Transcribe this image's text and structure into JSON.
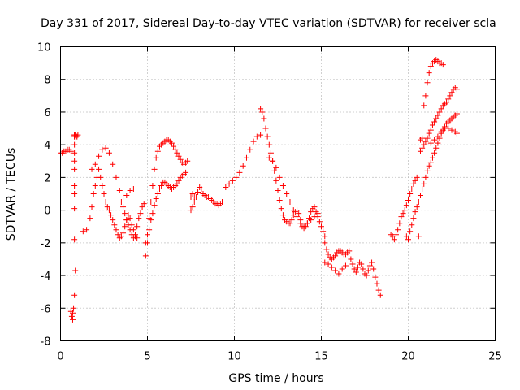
{
  "chart_data": {
    "type": "scatter",
    "title": "Day 331 of 2017, Sidereal Day-to-day VTEC variation (SDTVAR) for receiver scla",
    "xlabel": "GPS time / hours",
    "ylabel": "SDTVAR / TECUs",
    "xlim": [
      0,
      25
    ],
    "ylim": [
      -8,
      10
    ],
    "xticks": [
      0,
      5,
      10,
      15,
      20,
      25
    ],
    "yticks": [
      -8,
      -6,
      -4,
      -2,
      0,
      2,
      4,
      6,
      8,
      10
    ],
    "grid": true,
    "marker": "+",
    "color": "#ff0000",
    "series": [
      {
        "name": "SDTVAR",
        "x": [
          0.0,
          0.1,
          0.2,
          0.3,
          0.4,
          0.5,
          0.6,
          0.7,
          0.6,
          0.65,
          0.7,
          0.75,
          0.8,
          0.85,
          0.8,
          0.8,
          0.8,
          0.8,
          0.8,
          0.8,
          0.8,
          0.8,
          0.8,
          0.8,
          0.8,
          0.8,
          0.85,
          0.9,
          0.95,
          1.0,
          1.3,
          1.5,
          1.7,
          1.8,
          1.9,
          2.0,
          2.1,
          2.2,
          2.3,
          2.4,
          2.5,
          2.6,
          2.7,
          2.8,
          2.9,
          3.0,
          3.1,
          3.2,
          3.3,
          3.4,
          3.5,
          3.6,
          3.7,
          3.8,
          3.9,
          4.0,
          4.1,
          4.2,
          4.3,
          4.4,
          1.8,
          2.0,
          2.2,
          2.4,
          2.6,
          2.8,
          3.0,
          3.2,
          3.4,
          3.6,
          3.8,
          4.0,
          4.2,
          3.5,
          3.6,
          3.7,
          3.8,
          3.9,
          4.0,
          4.1,
          4.2,
          4.3,
          4.4,
          4.5,
          4.6,
          4.7,
          4.8,
          4.9,
          5.0,
          5.1,
          5.2,
          5.3,
          5.4,
          5.5,
          5.6,
          5.7,
          5.8,
          5.9,
          6.0,
          6.1,
          6.2,
          6.3,
          6.4,
          6.5,
          6.6,
          6.7,
          6.8,
          6.9,
          7.0,
          7.1,
          7.2,
          7.3,
          4.9,
          5.0,
          5.1,
          5.2,
          5.3,
          5.4,
          5.5,
          5.6,
          5.7,
          5.8,
          5.9,
          6.0,
          6.1,
          6.2,
          6.3,
          6.4,
          6.5,
          6.6,
          6.7,
          6.8,
          6.9,
          7.0,
          7.1,
          7.2,
          7.5,
          7.6,
          7.7,
          7.8,
          7.9,
          8.0,
          8.1,
          8.2,
          8.3,
          8.4,
          8.5,
          8.6,
          8.7,
          8.8,
          8.9,
          9.0,
          9.1,
          9.2,
          9.3,
          7.5,
          7.6,
          7.7,
          9.5,
          9.7,
          9.9,
          10.1,
          10.3,
          10.5,
          10.7,
          10.9,
          11.1,
          11.3,
          11.5,
          11.5,
          11.6,
          11.7,
          11.8,
          11.9,
          12.0,
          12.1,
          12.2,
          12.3,
          12.4,
          12.5,
          12.6,
          12.7,
          12.8,
          12.9,
          13.0,
          13.1,
          13.2,
          13.3,
          13.4,
          13.5,
          13.6,
          13.7,
          13.8,
          13.9,
          14.0,
          14.1,
          14.2,
          14.3,
          14.4,
          14.5,
          14.6,
          14.7,
          14.8,
          14.9,
          15.0,
          15.1,
          15.2,
          12.0,
          12.2,
          12.4,
          12.6,
          12.8,
          13.0,
          13.2,
          13.4,
          13.6,
          13.8,
          14.0,
          14.2,
          14.4,
          14.6,
          14.8,
          15.2,
          15.3,
          15.4,
          15.5,
          15.6,
          15.7,
          15.8,
          15.9,
          16.0,
          16.1,
          16.2,
          16.3,
          16.4,
          16.5,
          16.6,
          16.7,
          16.8,
          16.9,
          17.0,
          17.1,
          17.2,
          17.3,
          17.4,
          17.5,
          17.6,
          17.7,
          17.8,
          17.9,
          18.0,
          18.1,
          18.2,
          18.3,
          18.4,
          15.2,
          15.4,
          15.6,
          15.8,
          16.0,
          16.2,
          16.4,
          19.0,
          19.1,
          19.2,
          19.3,
          19.4,
          19.5,
          19.6,
          19.7,
          19.8,
          19.9,
          20.0,
          20.1,
          20.2,
          20.3,
          20.4,
          20.5,
          19.9,
          20.0,
          20.1,
          20.2,
          20.3,
          20.4,
          20.5,
          20.6,
          20.7,
          20.8,
          20.9,
          21.0,
          21.1,
          21.2,
          21.3,
          21.4,
          21.5,
          21.6,
          21.7,
          21.8,
          21.9,
          22.0,
          22.1,
          22.2,
          22.3,
          22.4,
          22.5,
          22.6,
          22.7,
          22.8,
          20.7,
          20.8,
          20.9,
          21.0,
          21.1,
          21.2,
          21.3,
          21.4,
          21.5,
          21.6,
          21.7,
          21.8,
          21.9,
          22.0,
          22.1,
          22.2,
          22.3,
          22.4,
          22.5,
          22.6,
          22.7,
          22.8,
          20.9,
          21.0,
          21.1,
          21.2,
          21.3,
          21.4,
          21.5,
          21.6,
          21.7,
          21.8,
          21.9,
          22.0,
          21.3,
          21.5,
          21.7,
          21.9,
          22.1,
          22.3,
          22.5,
          22.7,
          22.8,
          20.8,
          20.6,
          20.7
        ],
        "y": [
          3.5,
          3.5,
          3.6,
          3.6,
          3.7,
          3.7,
          3.6,
          -6.3,
          -6.2,
          -6.5,
          -6.7,
          -6.0,
          -5.2,
          -3.7,
          -1.8,
          0.1,
          1.0,
          1.5,
          2.5,
          3.0,
          3.5,
          4.0,
          4.5,
          4.6,
          4.5,
          4.6,
          4.6,
          4.5,
          4.5,
          4.6,
          -1.3,
          -1.2,
          -0.5,
          0.2,
          1.0,
          1.5,
          2.0,
          2.5,
          2.0,
          1.5,
          1.0,
          0.5,
          0.2,
          0.0,
          -0.3,
          -0.6,
          -0.9,
          -1.2,
          -1.5,
          -1.7,
          -1.6,
          -1.4,
          -1.0,
          -0.6,
          -0.3,
          -0.5,
          -0.9,
          -1.2,
          -1.6,
          -1.7,
          2.5,
          2.8,
          3.3,
          3.7,
          3.8,
          3.5,
          2.8,
          2.0,
          1.2,
          0.8,
          0.9,
          1.2,
          1.3,
          0.5,
          0.2,
          -0.2,
          -0.6,
          -0.9,
          -1.2,
          -1.5,
          -1.7,
          -1.5,
          -1.0,
          -0.5,
          -0.2,
          0.2,
          0.4,
          -2.0,
          -1.5,
          -0.5,
          0.5,
          1.5,
          2.5,
          3.2,
          3.6,
          3.9,
          4.0,
          4.1,
          4.2,
          4.3,
          4.3,
          4.2,
          4.1,
          3.9,
          3.7,
          3.5,
          3.3,
          3.1,
          2.9,
          2.8,
          2.9,
          3.0,
          -2.8,
          -2.0,
          -1.2,
          -0.6,
          -0.2,
          0.3,
          0.7,
          1.0,
          1.3,
          1.5,
          1.7,
          1.7,
          1.6,
          1.5,
          1.4,
          1.3,
          1.4,
          1.5,
          1.6,
          1.8,
          2.0,
          2.1,
          2.2,
          2.3,
          0.0,
          0.2,
          0.5,
          0.8,
          1.1,
          1.4,
          1.3,
          1.0,
          0.9,
          0.8,
          0.8,
          0.7,
          0.6,
          0.5,
          0.4,
          0.4,
          0.3,
          0.4,
          0.5,
          0.8,
          1.0,
          0.8,
          1.4,
          1.6,
          1.8,
          2.0,
          2.3,
          2.7,
          3.2,
          3.7,
          4.2,
          4.5,
          4.6,
          6.2,
          6.0,
          5.6,
          5.0,
          4.5,
          4.0,
          3.5,
          3.0,
          2.4,
          1.8,
          1.2,
          0.6,
          0.1,
          -0.3,
          -0.6,
          -0.7,
          -0.8,
          -0.8,
          -0.6,
          -0.3,
          -0.1,
          0.0,
          -0.2,
          -0.6,
          -1.0,
          -1.1,
          -1.0,
          -0.8,
          -0.5,
          -0.1,
          0.1,
          0.2,
          -0.1,
          -0.4,
          -0.7,
          -1.0,
          -1.3,
          -1.6,
          3.2,
          3.0,
          2.6,
          2.0,
          1.5,
          1.0,
          0.5,
          0.0,
          -0.4,
          -0.8,
          -1.0,
          -0.8,
          -0.6,
          -0.4,
          -0.2,
          -2.0,
          -2.4,
          -2.7,
          -2.9,
          -3.0,
          -2.9,
          -2.8,
          -2.6,
          -2.5,
          -2.5,
          -2.6,
          -2.7,
          -2.7,
          -2.6,
          -2.5,
          -3.0,
          -3.3,
          -3.6,
          -3.8,
          -3.5,
          -3.2,
          -3.3,
          -3.6,
          -3.9,
          -4.0,
          -3.7,
          -3.4,
          -3.2,
          -3.6,
          -4.1,
          -4.5,
          -4.9,
          -5.2,
          -3.2,
          -3.3,
          -3.5,
          -3.7,
          -3.9,
          -3.6,
          -3.4,
          -1.5,
          -1.6,
          -1.8,
          -1.5,
          -1.2,
          -0.8,
          -0.4,
          -0.2,
          0.0,
          0.3,
          0.6,
          1.0,
          1.3,
          1.6,
          1.8,
          2.0,
          -1.6,
          -1.8,
          -1.3,
          -0.9,
          -0.5,
          -0.1,
          0.2,
          0.5,
          0.9,
          1.3,
          1.6,
          2.0,
          2.4,
          2.7,
          2.9,
          3.2,
          3.5,
          3.8,
          4.1,
          4.4,
          4.7,
          4.9,
          5.1,
          5.3,
          5.4,
          5.5,
          5.6,
          5.7,
          5.8,
          5.9,
          3.6,
          3.8,
          4.0,
          4.2,
          4.4,
          4.7,
          4.9,
          5.2,
          5.4,
          5.6,
          5.8,
          6.0,
          6.2,
          6.4,
          6.5,
          6.6,
          6.8,
          7.0,
          7.2,
          7.4,
          7.5,
          7.4,
          6.4,
          7.0,
          7.8,
          8.4,
          8.8,
          9.0,
          9.1,
          9.2,
          9.1,
          9.0,
          9.0,
          8.9,
          4.1,
          4.3,
          4.5,
          4.8,
          5.0,
          5.0,
          4.9,
          4.8,
          4.7,
          4.4,
          -1.6,
          4.3
        ]
      }
    ]
  }
}
